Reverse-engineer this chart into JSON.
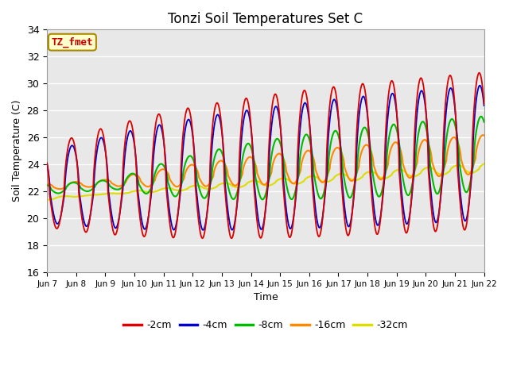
{
  "title": "Tonzi Soil Temperatures Set C",
  "xlabel": "Time",
  "ylabel": "Soil Temperature (C)",
  "ylim": [
    16,
    34
  ],
  "series_labels": [
    "-2cm",
    "-4cm",
    "-8cm",
    "-16cm",
    "-32cm"
  ],
  "series_colors": [
    "#dd0000",
    "#0000cc",
    "#00bb00",
    "#ff8800",
    "#dddd00"
  ],
  "annotation_text": "TZ_fmet",
  "annotation_bg": "#ffffcc",
  "annotation_border": "#aa8800",
  "n_days": 15,
  "samples_per_day": 288,
  "tick_labels": [
    "Jun 7",
    "Jun 8",
    "Jun 9",
    "Jun 10",
    "Jun 11",
    "Jun 12",
    "Jun 13",
    "Jun 14",
    "Jun 15",
    "Jun 16",
    "Jun 17",
    "Jun 18",
    "Jun 19",
    "Jun 20",
    "Jun 21",
    "Jun 22"
  ],
  "grid_color": "#ffffff",
  "bg_color": "#e8e8e8"
}
